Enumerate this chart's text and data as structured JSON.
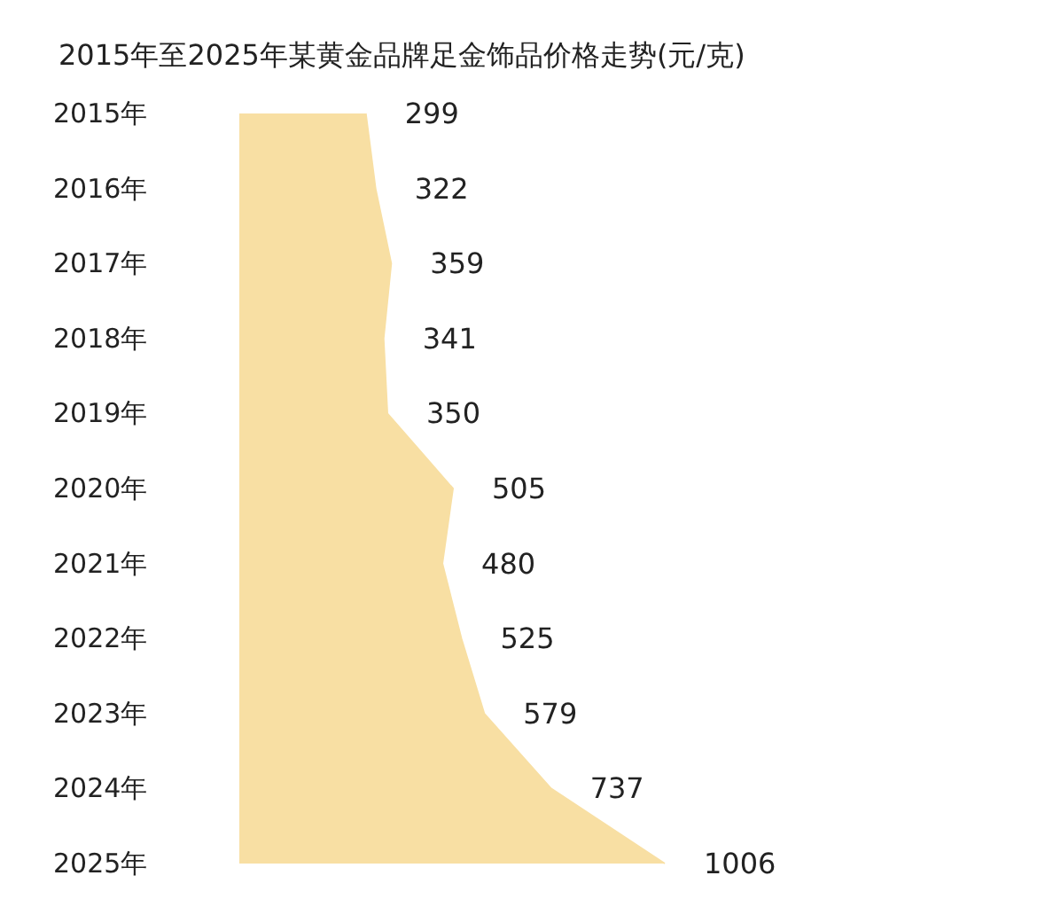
{
  "chart_data": {
    "type": "area",
    "orientation": "horizontal",
    "title": "2015年至2025年某黄金品牌足金饰品价格走势(元/克)",
    "categories": [
      "2015年",
      "2016年",
      "2017年",
      "2018年",
      "2019年",
      "2020年",
      "2021年",
      "2022年",
      "2023年",
      "2024年",
      "2025年"
    ],
    "values": [
      299,
      322,
      359,
      341,
      350,
      505,
      480,
      525,
      579,
      737,
      1006
    ],
    "color": "#f8dfa3",
    "data_labels": true,
    "tick_labels": "y"
  }
}
